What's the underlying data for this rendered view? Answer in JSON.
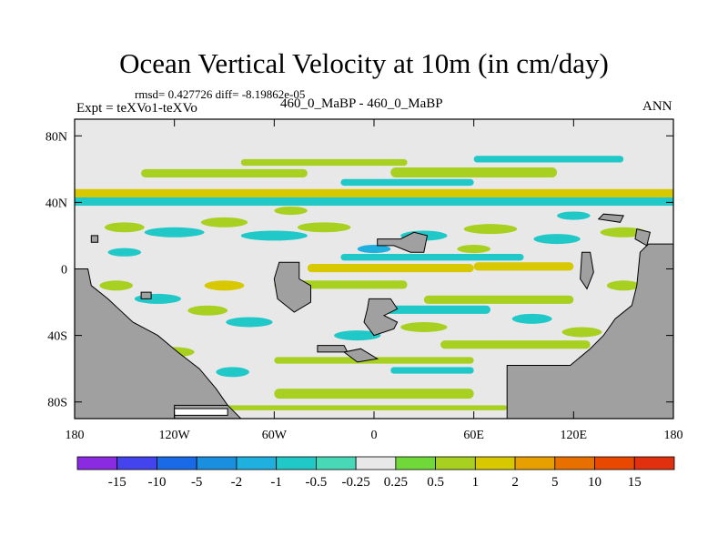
{
  "header": {
    "title": "Ocean Vertical Velocity at 10m (in cm/day)",
    "stats": "rmsd= 0.427726 diff= -8.19862e-05",
    "expt_label": "Expt = teXVo1-teXVo",
    "comparison": "460_0_MaBP - 460_0_MaBP",
    "season": "ANN"
  },
  "chart_data": {
    "type": "heatmap",
    "title": "Ocean Vertical Velocity at 10m (in cm/day)",
    "xlabel": "",
    "ylabel": "",
    "x_ticks": [
      "180",
      "120W",
      "60W",
      "0",
      "60E",
      "120E",
      "180"
    ],
    "y_ticks": [
      "80N",
      "40N",
      "0",
      "40S",
      "80S"
    ],
    "xlim": [
      -180,
      180
    ],
    "ylim": [
      -90,
      90
    ],
    "colorbar": {
      "labels": [
        "-15",
        "-10",
        "-5",
        "-2",
        "-1",
        "-0.5",
        "-0.25",
        "0.25",
        "0.5",
        "1",
        "2",
        "5",
        "10",
        "15"
      ],
      "colors": [
        "#8a2be2",
        "#4444ee",
        "#1a6ae8",
        "#1a8fe0",
        "#20b0e0",
        "#20c8c8",
        "#48d8b8",
        "#e8e8e8",
        "#70d838",
        "#a8d020",
        "#d8c800",
        "#e8a000",
        "#e87000",
        "#e84800",
        "#e03010"
      ]
    },
    "land_color": "#a0a0a0",
    "background_color": "#e8e8e8",
    "features": [
      {
        "name": "band-45N",
        "lon": [
          -180,
          180
        ],
        "lat": [
          43,
          48
        ],
        "level": "1"
      },
      {
        "name": "band-40N",
        "lon": [
          -180,
          180
        ],
        "lat": [
          38,
          43
        ],
        "level": "-0.5"
      },
      {
        "name": "band-58N-a",
        "lon": [
          -140,
          -40
        ],
        "lat": [
          55,
          60
        ],
        "level": "0.5"
      },
      {
        "name": "band-58N-b",
        "lon": [
          10,
          110
        ],
        "lat": [
          55,
          61
        ],
        "level": "0.5"
      },
      {
        "name": "band-52N",
        "lon": [
          -20,
          60
        ],
        "lat": [
          50,
          54
        ],
        "level": "-0.5"
      },
      {
        "name": "band-65N",
        "lon": [
          -80,
          20
        ],
        "lat": [
          62,
          66
        ],
        "level": "0.5"
      },
      {
        "name": "band-67N",
        "lon": [
          60,
          150
        ],
        "lat": [
          64,
          68
        ],
        "level": "-0.5"
      },
      {
        "name": "band-0-a",
        "lon": [
          -40,
          60
        ],
        "lat": [
          -2,
          3
        ],
        "level": "1"
      },
      {
        "name": "band-0-b",
        "lon": [
          60,
          120
        ],
        "lat": [
          -1,
          4
        ],
        "level": "1"
      },
      {
        "name": "band-5N",
        "lon": [
          -20,
          90
        ],
        "lat": [
          5,
          9
        ],
        "level": "-0.5"
      },
      {
        "name": "band-10S",
        "lon": [
          -60,
          20
        ],
        "lat": [
          -12,
          -7
        ],
        "level": "0.5"
      },
      {
        "name": "band-20S",
        "lon": [
          30,
          120
        ],
        "lat": [
          -21,
          -16
        ],
        "level": "0.5"
      },
      {
        "name": "band-25S",
        "lon": [
          0,
          70
        ],
        "lat": [
          -27,
          -22
        ],
        "level": "-0.5"
      },
      {
        "name": "band-45S",
        "lon": [
          40,
          130
        ],
        "lat": [
          -48,
          -43
        ],
        "level": "0.5"
      },
      {
        "name": "band-55S",
        "lon": [
          -60,
          60
        ],
        "lat": [
          -57,
          -53
        ],
        "level": "0.5"
      },
      {
        "name": "band-62S",
        "lon": [
          10,
          60
        ],
        "lat": [
          -63,
          -59
        ],
        "level": "-0.5"
      },
      {
        "name": "band-75S",
        "lon": [
          -60,
          60
        ],
        "lat": [
          -78,
          -72
        ],
        "level": "0.5"
      },
      {
        "name": "band-82S",
        "lon": [
          -100,
          80
        ],
        "lat": [
          -85,
          -82
        ],
        "level": "0.5"
      }
    ]
  }
}
